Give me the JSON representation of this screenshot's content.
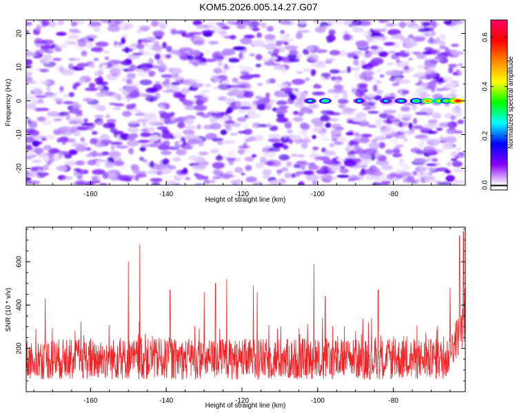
{
  "chart_data": [
    {
      "type": "heatmap",
      "title": "KOM5.2026.005.14.27.G07",
      "xlabel": "Height of straight line (km)",
      "ylabel": "Frequency (Hz)",
      "xlim": [
        -177,
        -61
      ],
      "ylim": [
        -25,
        24
      ],
      "xticks": [
        -160,
        -140,
        -120,
        -100,
        -80
      ],
      "yticks": [
        -20,
        -10,
        0,
        10,
        20
      ],
      "colorbar": {
        "label": "Normalized spectral amplitude",
        "range": [
          0.0,
          0.67
        ],
        "ticks": [
          0.0,
          0.2,
          0.4,
          0.6
        ],
        "colors": [
          "#ffffff",
          "#8800ff",
          "#0000ff",
          "#00ffff",
          "#00ff00",
          "#ffff00",
          "#ff8800",
          "#ff0000",
          "#ff0066"
        ]
      },
      "signal_track": {
        "frequency": 0,
        "points": [
          {
            "x": -102,
            "amp": 0.26
          },
          {
            "x": -98,
            "amp": 0.32
          },
          {
            "x": -89,
            "amp": 0.25
          },
          {
            "x": -82,
            "amp": 0.26
          },
          {
            "x": -78,
            "amp": 0.28
          },
          {
            "x": -74,
            "amp": 0.34
          },
          {
            "x": -71,
            "amp": 0.5
          },
          {
            "x": -68,
            "amp": 0.42
          },
          {
            "x": -66,
            "amp": 0.38
          },
          {
            "x": -64,
            "amp": 0.52
          },
          {
            "x": -63,
            "amp": 0.6
          }
        ]
      }
    },
    {
      "type": "line",
      "xlabel": "Height of straight line (km)",
      "ylabel": "SNR (10 * v/v)",
      "xlim": [
        -177,
        -61
      ],
      "ylim": [
        0,
        760
      ],
      "xticks": [
        -160,
        -140,
        -120,
        -100,
        -80
      ],
      "yticks": [
        200,
        400,
        600
      ],
      "color": "#ee2222",
      "series": [
        {
          "name": "SNR",
          "baseline": 150,
          "spread": 95,
          "peaks": [
            {
              "x": -172,
              "y": 430
            },
            {
              "x": -150,
              "y": 600
            },
            {
              "x": -147,
              "y": 680
            },
            {
              "x": -139,
              "y": 470
            },
            {
              "x": -130,
              "y": 460
            },
            {
              "x": -127,
              "y": 500
            },
            {
              "x": -124,
              "y": 520
            },
            {
              "x": -117,
              "y": 490
            },
            {
              "x": -116,
              "y": 460
            },
            {
              "x": -101,
              "y": 590
            },
            {
              "x": -98,
              "y": 440
            },
            {
              "x": -84,
              "y": 470
            },
            {
              "x": -65,
              "y": 480
            },
            {
              "x": -62.5,
              "y": 720
            },
            {
              "x": -61.5,
              "y": 740
            }
          ]
        }
      ]
    }
  ]
}
